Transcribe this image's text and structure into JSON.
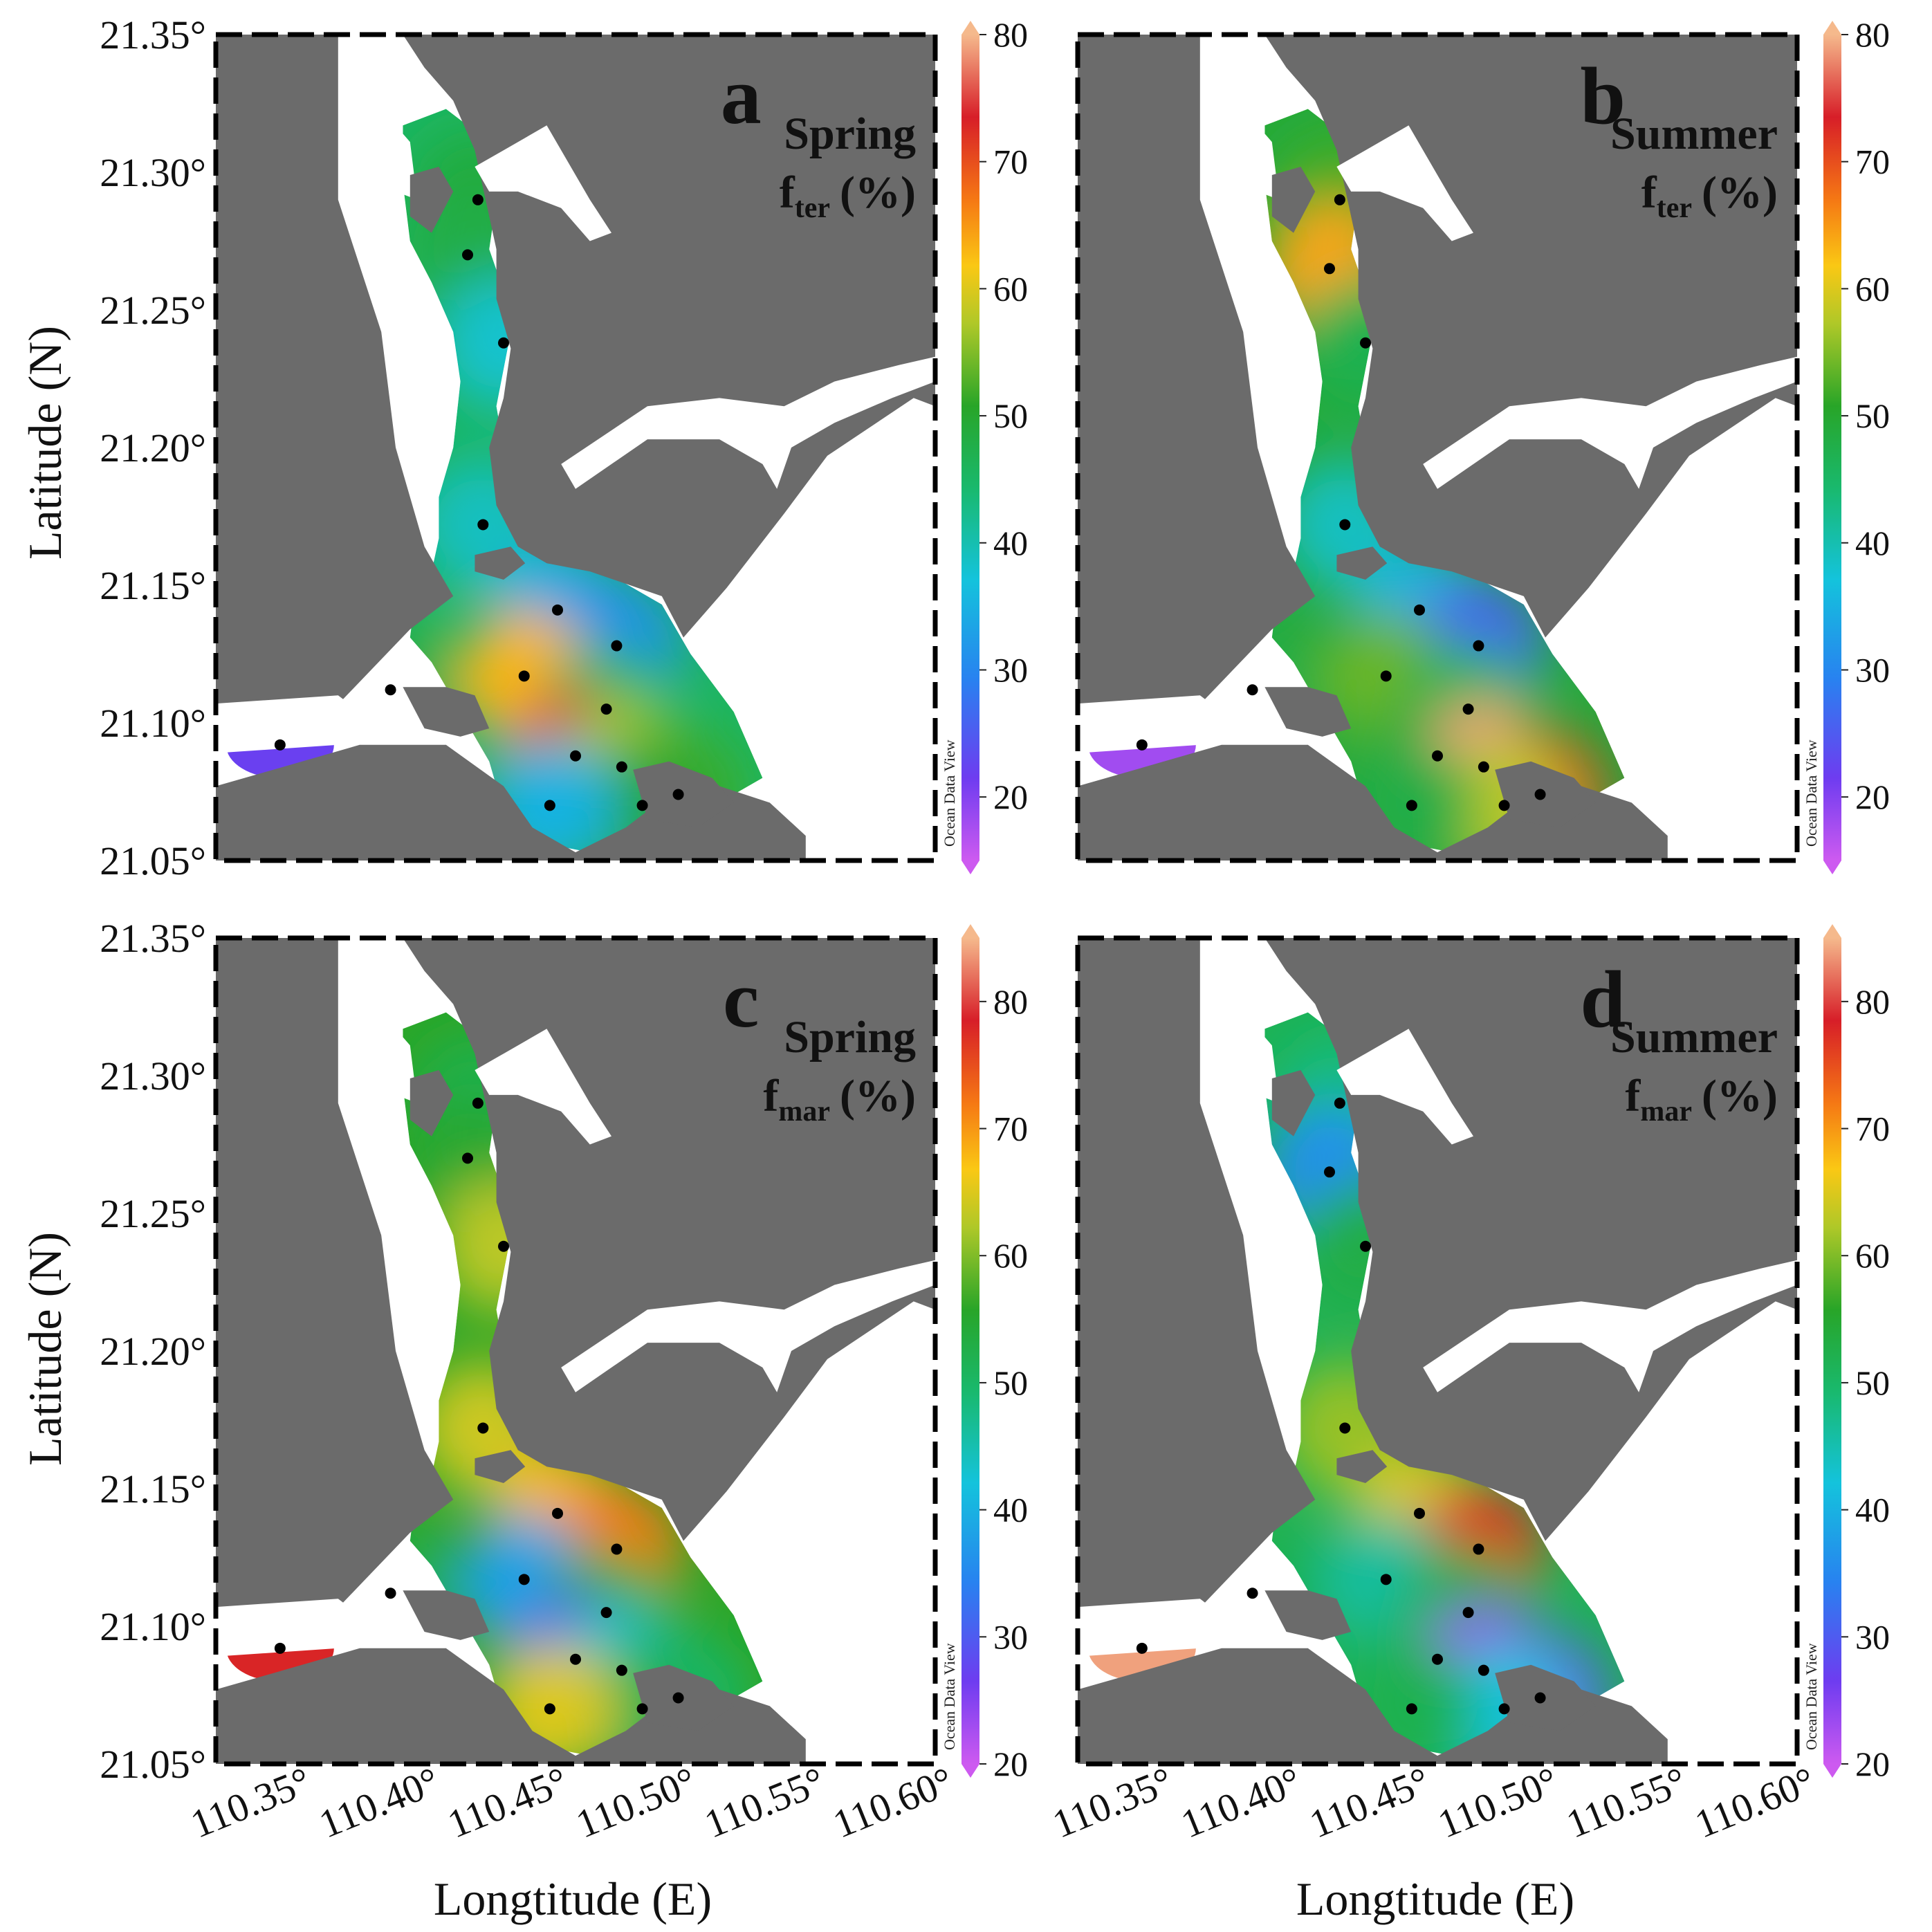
{
  "figure": {
    "y_axis_title": "Latitude (N)",
    "x_axis_title": "Longtitude (E)",
    "lon_ticks": [
      "110.35°",
      "110.40°",
      "110.45°",
      "110.50°",
      "110.55°",
      "110.60°"
    ],
    "lat_ticks": [
      "21.35°",
      "21.30°",
      "21.25°",
      "21.20°",
      "21.15°",
      "21.10°",
      "21.05°"
    ],
    "credit": "Ocean Data View",
    "colors": {
      "land": "#6b6b6b",
      "water": "#ffffff",
      "station_marker": "#000000",
      "frame": "#000000"
    }
  },
  "panels": [
    {
      "letter": "a",
      "season": "Spring",
      "var_main": "f",
      "var_sub": "ter",
      "unit": "(%)",
      "colorbar": {
        "min": 15,
        "max": 80,
        "ticks": [
          "80",
          "70",
          "60",
          "50",
          "40",
          "30",
          "20"
        ]
      },
      "stations": [
        {
          "lon": 110.422,
          "lat": 21.29,
          "value": 49
        },
        {
          "lon": 110.418,
          "lat": 21.27,
          "value": 48
        },
        {
          "lon": 110.432,
          "lat": 21.238,
          "value": 38
        },
        {
          "lon": 110.424,
          "lat": 21.172,
          "value": 39
        },
        {
          "lon": 110.453,
          "lat": 21.141,
          "value": 34
        },
        {
          "lon": 110.476,
          "lat": 21.128,
          "value": 31
        },
        {
          "lon": 110.44,
          "lat": 21.117,
          "value": 63
        },
        {
          "lon": 110.472,
          "lat": 21.105,
          "value": 45
        },
        {
          "lon": 110.388,
          "lat": 21.112,
          "value": 48
        },
        {
          "lon": 110.345,
          "lat": 21.092,
          "value": 22
        },
        {
          "lon": 110.46,
          "lat": 21.088,
          "value": 72
        },
        {
          "lon": 110.478,
          "lat": 21.084,
          "value": 57
        },
        {
          "lon": 110.5,
          "lat": 21.074,
          "value": 52
        },
        {
          "lon": 110.486,
          "lat": 21.07,
          "value": 50
        },
        {
          "lon": 110.45,
          "lat": 21.07,
          "value": 35
        }
      ]
    },
    {
      "letter": "b",
      "season": "Summer",
      "var_main": "f",
      "var_sub": "ter",
      "unit": "(%)",
      "colorbar": {
        "min": 15,
        "max": 80,
        "ticks": [
          "80",
          "70",
          "60",
          "50",
          "40",
          "30",
          "20"
        ]
      },
      "stations": [
        {
          "lon": 110.422,
          "lat": 21.29,
          "value": 52
        },
        {
          "lon": 110.418,
          "lat": 21.265,
          "value": 64
        },
        {
          "lon": 110.432,
          "lat": 21.238,
          "value": 47
        },
        {
          "lon": 110.424,
          "lat": 21.172,
          "value": 39
        },
        {
          "lon": 110.453,
          "lat": 21.141,
          "value": 35
        },
        {
          "lon": 110.476,
          "lat": 21.128,
          "value": 26
        },
        {
          "lon": 110.44,
          "lat": 21.117,
          "value": 54
        },
        {
          "lon": 110.472,
          "lat": 21.105,
          "value": 46
        },
        {
          "lon": 110.388,
          "lat": 21.112,
          "value": 48
        },
        {
          "lon": 110.345,
          "lat": 21.092,
          "value": 18
        },
        {
          "lon": 110.46,
          "lat": 21.088,
          "value": 49
        },
        {
          "lon": 110.478,
          "lat": 21.084,
          "value": 79
        },
        {
          "lon": 110.5,
          "lat": 21.074,
          "value": 72
        },
        {
          "lon": 110.486,
          "lat": 21.07,
          "value": 58
        },
        {
          "lon": 110.45,
          "lat": 21.07,
          "value": 48
        }
      ]
    },
    {
      "letter": "c",
      "season": "Spring",
      "var_main": "f",
      "var_sub": "mar",
      "unit": "(%)",
      "colorbar": {
        "min": 20,
        "max": 85,
        "ticks": [
          "80",
          "70",
          "60",
          "50",
          "40",
          "30",
          "20"
        ]
      },
      "stations": [
        {
          "lon": 110.422,
          "lat": 21.29,
          "value": 52
        },
        {
          "lon": 110.418,
          "lat": 21.27,
          "value": 55
        },
        {
          "lon": 110.432,
          "lat": 21.238,
          "value": 63
        },
        {
          "lon": 110.424,
          "lat": 21.172,
          "value": 64
        },
        {
          "lon": 110.453,
          "lat": 21.141,
          "value": 68
        },
        {
          "lon": 110.476,
          "lat": 21.128,
          "value": 72
        },
        {
          "lon": 110.44,
          "lat": 21.117,
          "value": 38
        },
        {
          "lon": 110.472,
          "lat": 21.105,
          "value": 57
        },
        {
          "lon": 110.388,
          "lat": 21.112,
          "value": 53
        },
        {
          "lon": 110.345,
          "lat": 21.092,
          "value": 78
        },
        {
          "lon": 110.46,
          "lat": 21.088,
          "value": 30
        },
        {
          "lon": 110.478,
          "lat": 21.084,
          "value": 43
        },
        {
          "lon": 110.5,
          "lat": 21.074,
          "value": 49
        },
        {
          "lon": 110.486,
          "lat": 21.07,
          "value": 52
        },
        {
          "lon": 110.45,
          "lat": 21.07,
          "value": 65
        }
      ]
    },
    {
      "letter": "d",
      "season": "Summer",
      "var_main": "f",
      "var_sub": "mar",
      "unit": "(%)",
      "colorbar": {
        "min": 20,
        "max": 85,
        "ticks": [
          "80",
          "70",
          "60",
          "50",
          "40",
          "30",
          "20"
        ]
      },
      "stations": [
        {
          "lon": 110.422,
          "lat": 21.29,
          "value": 48
        },
        {
          "lon": 110.418,
          "lat": 21.265,
          "value": 36
        },
        {
          "lon": 110.432,
          "lat": 21.238,
          "value": 53
        },
        {
          "lon": 110.424,
          "lat": 21.172,
          "value": 61
        },
        {
          "lon": 110.453,
          "lat": 21.141,
          "value": 65
        },
        {
          "lon": 110.476,
          "lat": 21.128,
          "value": 77
        },
        {
          "lon": 110.44,
          "lat": 21.117,
          "value": 46
        },
        {
          "lon": 110.472,
          "lat": 21.105,
          "value": 54
        },
        {
          "lon": 110.388,
          "lat": 21.112,
          "value": 52
        },
        {
          "lon": 110.345,
          "lat": 21.092,
          "value": 84
        },
        {
          "lon": 110.46,
          "lat": 21.088,
          "value": 51
        },
        {
          "lon": 110.478,
          "lat": 21.084,
          "value": 24
        },
        {
          "lon": 110.5,
          "lat": 21.074,
          "value": 28
        },
        {
          "lon": 110.486,
          "lat": 21.07,
          "value": 42
        },
        {
          "lon": 110.45,
          "lat": 21.07,
          "value": 52
        }
      ]
    }
  ]
}
